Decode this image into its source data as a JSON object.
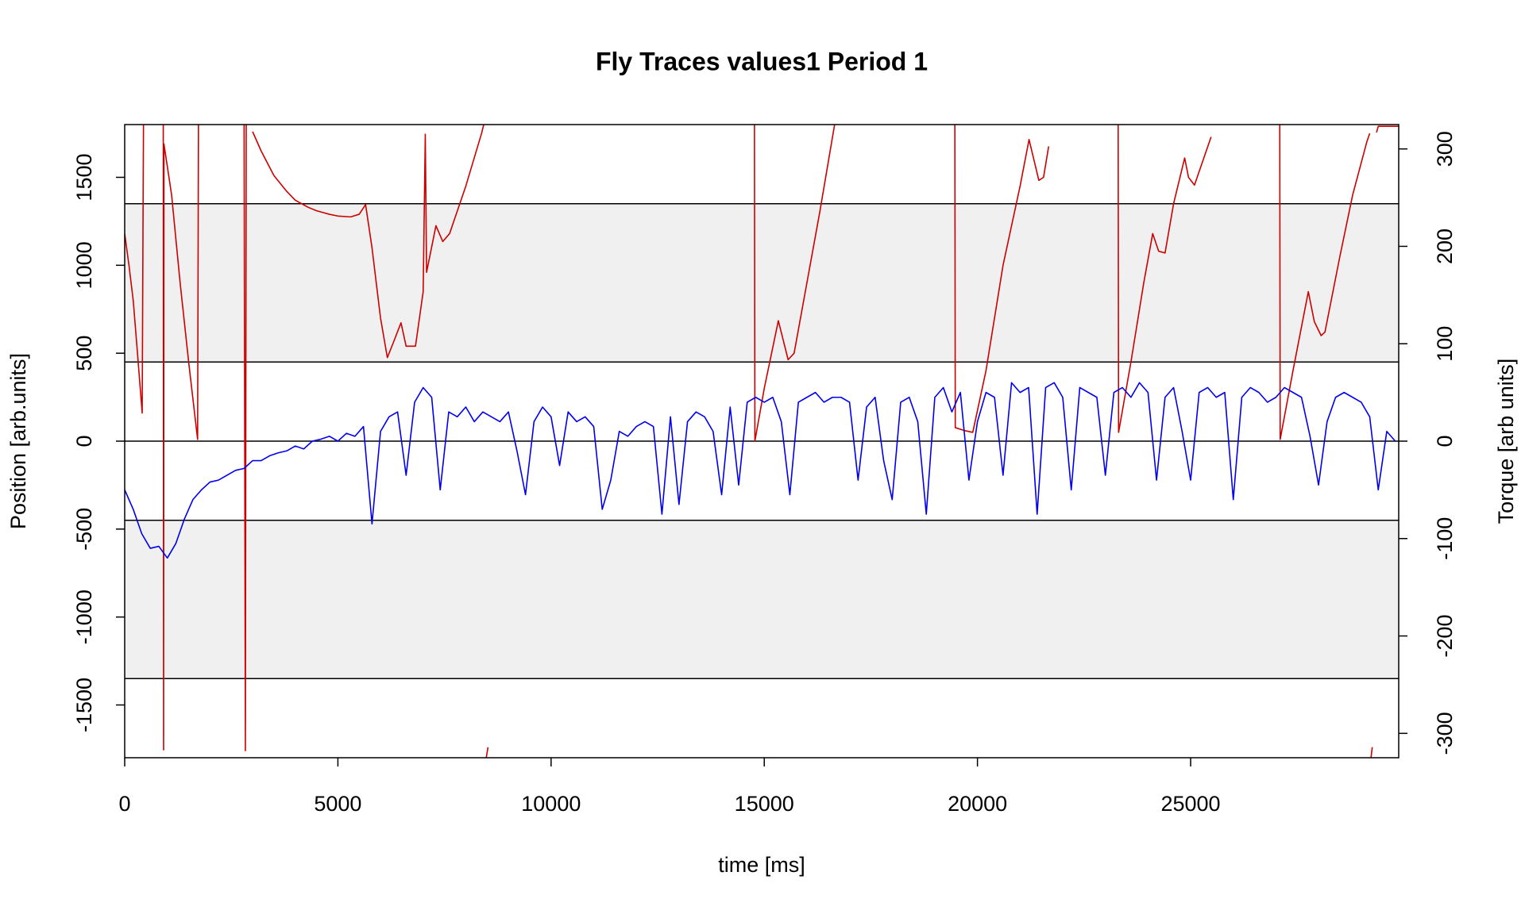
{
  "chart_data": {
    "type": "line",
    "title": "Fly Traces values1 Period 1",
    "xlabel": "time [ms]",
    "ylabel": "Position [arb.units]",
    "y2label": "Torque [arb units]",
    "xlim": [
      0,
      29880
    ],
    "ylim": [
      -1800,
      1800
    ],
    "y2lim": [
      -325,
      325
    ],
    "xticks": [
      0,
      5000,
      10000,
      15000,
      20000,
      25000
    ],
    "yticks": [
      -1500,
      -1000,
      -500,
      0,
      500,
      1000,
      1500
    ],
    "y2ticks": [
      -300,
      -200,
      -100,
      0,
      100,
      200,
      300
    ],
    "bands": [
      [
        450,
        1350
      ],
      [
        -1350,
        -450
      ]
    ],
    "band_color": "#f0f0f0",
    "hlines": [
      -1350,
      -450,
      0,
      450,
      1350
    ],
    "series": [
      {
        "color": "#cc0000",
        "x": [
          0,
          100,
          200,
          300,
          410,
          440,
          600,
          905,
          912,
          920,
          1100,
          1300,
          1500,
          1710,
          1730,
          2000,
          2800,
          2830,
          2850,
          2900,
          3000,
          3200,
          3500,
          3800,
          4000,
          4300,
          4500,
          4800,
          5000,
          5300,
          5500,
          5650,
          5800,
          6000,
          6160,
          6300,
          6480,
          6600,
          6820,
          7000,
          7050,
          7080,
          7300,
          7460,
          7620,
          8000,
          8370,
          8420,
          8450,
          8480,
          8520,
          8600,
          14770,
          14780,
          15000,
          15330,
          15560,
          15700,
          16000,
          16300,
          16580,
          16650,
          17000,
          19470,
          19480,
          19700,
          19890,
          20200,
          20600,
          21000,
          21210,
          21440,
          21550,
          21670,
          22000,
          23300,
          23310,
          23600,
          23900,
          24110,
          24250,
          24400,
          24600,
          24860,
          24950,
          25090,
          25480,
          26000,
          27090,
          27100,
          27400,
          27760,
          27900,
          28060,
          28150,
          28500,
          28800,
          29130,
          29200,
          29220,
          29230,
          29260,
          29300,
          29360,
          29400,
          29700,
          29880
        ],
        "values": [
          1180,
          1000,
          800,
          500,
          160,
          1800,
          null,
          1800,
          -1755,
          1690,
          1400,
          900,
          450,
          10,
          1800,
          null,
          1800,
          -1760,
          1800,
          null,
          1760,
          1650,
          1510,
          1420,
          1370,
          1330,
          1310,
          1290,
          1280,
          1275,
          1290,
          1345,
          1100,
          700,
          475,
          560,
          673,
          540,
          540,
          850,
          1745,
          960,
          1225,
          1135,
          1180,
          1450,
          1750,
          1800,
          null,
          -1800,
          -1740,
          null,
          1800,
          0,
          300,
          685,
          463,
          500,
          900,
          1300,
          1700,
          1800,
          null,
          1800,
          77,
          60,
          50,
          400,
          1000,
          1450,
          1715,
          1483,
          1500,
          1676,
          null,
          1800,
          50,
          450,
          900,
          1180,
          1080,
          1070,
          1350,
          1610,
          1500,
          1456,
          1730,
          null,
          1800,
          10,
          400,
          850,
          680,
          600,
          620,
          1050,
          1400,
          1700,
          1750,
          null,
          -1800,
          -1740,
          null,
          1755,
          1790,
          1790,
          1790
        ]
      },
      {
        "color": "#0000ee",
        "axis": "y2",
        "x": [
          0,
          200,
          400,
          600,
          800,
          1000,
          1200,
          1400,
          1600,
          1800,
          2000,
          2200,
          2400,
          2600,
          2800,
          3000,
          3200,
          3400,
          3600,
          3800,
          4000,
          4200,
          4400,
          4600,
          4800,
          5000,
          5200,
          5400,
          5600,
          5800,
          6000,
          6200,
          6400,
          6600,
          6800,
          7000,
          7200,
          7400,
          7600,
          7800,
          8000,
          8200,
          8400,
          8600,
          8800,
          9000,
          9200,
          9400,
          9600,
          9800,
          10000,
          10200,
          10400,
          10600,
          10800,
          11000,
          11200,
          11400,
          11600,
          11800,
          12000,
          12200,
          12400,
          12600,
          12800,
          13000,
          13200,
          13400,
          13600,
          13800,
          14000,
          14200,
          14400,
          14600,
          14800,
          15000,
          15200,
          15400,
          15600,
          15800,
          16000,
          16200,
          16400,
          16600,
          16800,
          17000,
          17200,
          17400,
          17600,
          17800,
          18000,
          18200,
          18400,
          18600,
          18800,
          19000,
          19200,
          19400,
          19600,
          19800,
          20000,
          20200,
          20400,
          20600,
          20800,
          21000,
          21200,
          21400,
          21600,
          21800,
          22000,
          22200,
          22400,
          22600,
          22800,
          23000,
          23200,
          23400,
          23600,
          23800,
          24000,
          24200,
          24400,
          24600,
          24800,
          25000,
          25200,
          25400,
          25600,
          25800,
          26000,
          26200,
          26400,
          26600,
          26800,
          27000,
          27200,
          27400,
          27600,
          27800,
          28000,
          28200,
          28400,
          28600,
          28800,
          29000,
          29200,
          29400,
          29600,
          29800
        ],
        "values": [
          -50,
          -70,
          -95,
          -110,
          -108,
          -120,
          -105,
          -80,
          -60,
          -50,
          -42,
          -40,
          -35,
          -30,
          -28,
          -20,
          -20,
          -15,
          -12,
          -10,
          -5,
          -8,
          0,
          2,
          5,
          0,
          8,
          5,
          15,
          -85,
          10,
          25,
          30,
          -35,
          40,
          55,
          45,
          -50,
          30,
          25,
          35,
          20,
          30,
          25,
          20,
          30,
          -10,
          -55,
          20,
          35,
          25,
          -25,
          30,
          20,
          25,
          15,
          -70,
          -40,
          10,
          5,
          15,
          20,
          15,
          -75,
          25,
          -65,
          20,
          30,
          25,
          10,
          -55,
          35,
          -45,
          40,
          45,
          40,
          45,
          20,
          -55,
          40,
          45,
          50,
          40,
          45,
          45,
          40,
          -40,
          35,
          45,
          -20,
          -60,
          40,
          45,
          20,
          -75,
          45,
          55,
          30,
          50,
          -40,
          20,
          50,
          45,
          -35,
          60,
          50,
          55,
          -75,
          55,
          60,
          45,
          -50,
          55,
          50,
          45,
          -35,
          50,
          55,
          45,
          60,
          50,
          -40,
          45,
          55,
          10,
          -40,
          50,
          55,
          45,
          50,
          -60,
          45,
          55,
          50,
          40,
          45,
          55,
          50,
          45,
          5,
          -45,
          20,
          45,
          50,
          45,
          40,
          25,
          -50,
          10,
          0
        ]
      }
    ]
  }
}
